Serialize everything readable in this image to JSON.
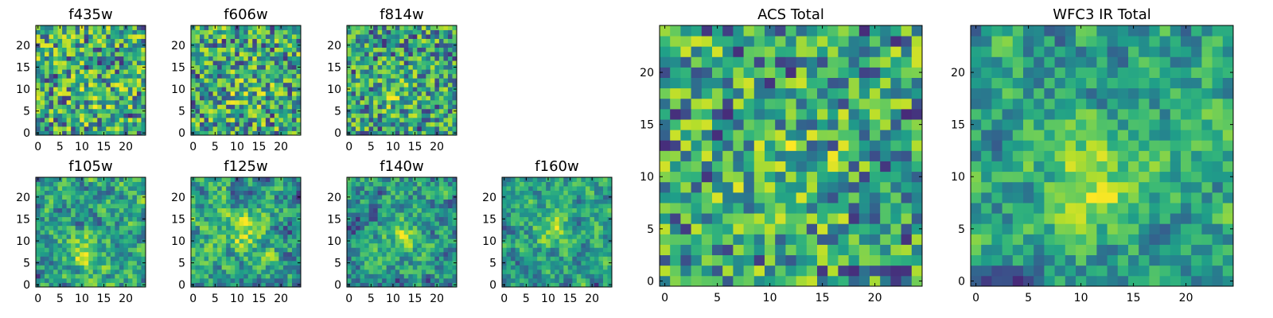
{
  "chart_data": [
    {
      "type": "heatmap",
      "title": "f435w",
      "grid_size": 25,
      "colormap": "viridis",
      "x_ticks": [
        0,
        5,
        10,
        15,
        20
      ],
      "y_ticks": [
        0,
        5,
        10,
        15,
        20
      ],
      "xlim": [
        -0.5,
        24.5
      ],
      "ylim": [
        -0.5,
        24.5
      ],
      "seed": 11,
      "smoothness": 0,
      "hotspot": {
        "x": 13,
        "y": 8,
        "strength": 0.1
      }
    },
    {
      "type": "heatmap",
      "title": "f606w",
      "grid_size": 25,
      "colormap": "viridis",
      "x_ticks": [
        0,
        5,
        10,
        15,
        20
      ],
      "y_ticks": [
        0,
        5,
        10,
        15,
        20
      ],
      "xlim": [
        -0.5,
        24.5
      ],
      "ylim": [
        -0.5,
        24.5
      ],
      "seed": 23,
      "smoothness": 0,
      "hotspot": {
        "x": 12,
        "y": 10,
        "strength": 0.15
      }
    },
    {
      "type": "heatmap",
      "title": "f814w",
      "grid_size": 25,
      "colormap": "viridis",
      "x_ticks": [
        0,
        5,
        10,
        15,
        20
      ],
      "y_ticks": [
        0,
        5,
        10,
        15,
        20
      ],
      "xlim": [
        -0.5,
        24.5
      ],
      "ylim": [
        -0.5,
        24.5
      ],
      "seed": 37,
      "smoothness": 0,
      "hotspot": {
        "x": 11,
        "y": 9,
        "strength": 0.2
      }
    },
    {
      "type": "heatmap",
      "title": "f105w",
      "grid_size": 25,
      "colormap": "viridis",
      "x_ticks": [
        0,
        5,
        10,
        15,
        20
      ],
      "y_ticks": [
        0,
        5,
        10,
        15,
        20
      ],
      "xlim": [
        -0.5,
        24.5
      ],
      "ylim": [
        -0.5,
        24.5
      ],
      "seed": 41,
      "smoothness": 1,
      "hotspot": {
        "x": 11,
        "y": 7,
        "strength": 0.35
      }
    },
    {
      "type": "heatmap",
      "title": "f125w",
      "grid_size": 25,
      "colormap": "viridis",
      "x_ticks": [
        0,
        5,
        10,
        15,
        20
      ],
      "y_ticks": [
        0,
        5,
        10,
        15,
        20
      ],
      "xlim": [
        -0.5,
        24.5
      ],
      "ylim": [
        -0.5,
        24.5
      ],
      "seed": 53,
      "smoothness": 1,
      "hotspot": {
        "x": 12,
        "y": 12,
        "strength": 0.3
      }
    },
    {
      "type": "heatmap",
      "title": "f140w",
      "grid_size": 25,
      "colormap": "viridis",
      "x_ticks": [
        0,
        5,
        10,
        15,
        20
      ],
      "y_ticks": [
        0,
        5,
        10,
        15,
        20
      ],
      "xlim": [
        -0.5,
        24.5
      ],
      "ylim": [
        -0.5,
        24.5
      ],
      "seed": 67,
      "smoothness": 1,
      "hotspot": {
        "x": 12,
        "y": 11,
        "strength": 0.3
      }
    },
    {
      "type": "heatmap",
      "title": "f160w",
      "grid_size": 25,
      "colormap": "viridis",
      "x_ticks": [
        0,
        5,
        10,
        15,
        20
      ],
      "y_ticks": [
        0,
        5,
        10,
        15,
        20
      ],
      "xlim": [
        -0.5,
        24.5
      ],
      "ylim": [
        -0.5,
        24.5
      ],
      "seed": 79,
      "smoothness": 1,
      "hotspot": {
        "x": 11,
        "y": 13,
        "strength": 0.35
      }
    },
    {
      "type": "heatmap",
      "title": "ACS Total",
      "grid_size": 25,
      "colormap": "viridis",
      "x_ticks": [
        0,
        5,
        10,
        15,
        20
      ],
      "y_ticks": [
        0,
        5,
        10,
        15,
        20
      ],
      "xlim": [
        -0.5,
        24.5
      ],
      "ylim": [
        -0.5,
        24.5
      ],
      "seed": 83,
      "smoothness": 0,
      "hotspot": {
        "x": 12,
        "y": 10,
        "strength": 0.25
      }
    },
    {
      "type": "heatmap",
      "title": "WFC3 IR Total",
      "grid_size": 25,
      "colormap": "viridis",
      "x_ticks": [
        0,
        5,
        10,
        15,
        20
      ],
      "y_ticks": [
        0,
        5,
        10,
        15,
        20
      ],
      "xlim": [
        -0.5,
        24.5
      ],
      "ylim": [
        -0.5,
        24.5
      ],
      "seed": 97,
      "smoothness": 1,
      "hotspot": {
        "x": 11,
        "y": 10,
        "strength": 0.4
      }
    }
  ]
}
